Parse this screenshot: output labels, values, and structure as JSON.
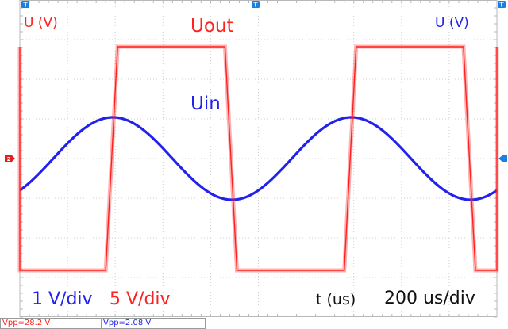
{
  "chart_data": {
    "type": "line",
    "time_axis": {
      "label": "t (us)",
      "scale": "200 us/div",
      "divisions": 10,
      "range_us": [
        0,
        2000
      ]
    },
    "grid": true,
    "series": [
      {
        "name": "Uout",
        "color": "#ff2020",
        "scale": "5 V/div",
        "axis_label": "U (V)",
        "kind": "square",
        "high_v": 14.1,
        "low_v": -14.1,
        "period_us": 1000,
        "high_start_us": 360,
        "high_duration_us": 500,
        "transition_us": 50,
        "measurement": "Vpp=28.2 V"
      },
      {
        "name": "Uin",
        "color": "#2222ee",
        "scale": "1 V/div",
        "axis_label": "U (V)",
        "kind": "sine",
        "amplitude_v": 1.04,
        "period_us": 1000,
        "peak_us": 390,
        "measurement": "Vpp=2.08 V"
      }
    ],
    "annotations": [
      {
        "text": "Uout",
        "color": "#ff2020"
      },
      {
        "text": "Uin",
        "color": "#2222ee"
      }
    ],
    "markers": {
      "trigger": "T",
      "channel_ref": "2"
    }
  }
}
